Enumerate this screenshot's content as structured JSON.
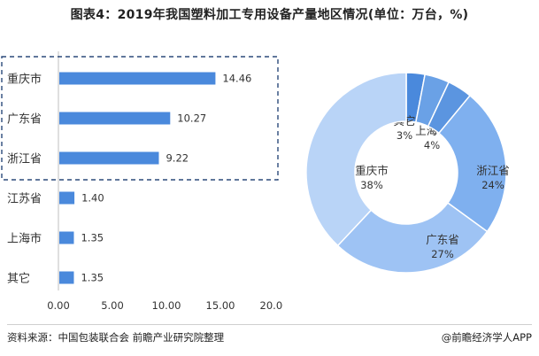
{
  "title": "图表4：2019年我国塑料加工专用设备产量地区情况(单位：万台，%)",
  "source": "资料来源：中国包装联合会 前瞻产业研究院整理",
  "credit": "@前瞻经济学人APP",
  "colors": {
    "bar": "#4a89dc",
    "highlight_box": "#2b4a7a",
    "slices": [
      "#4a89dc",
      "#6aa1e6",
      "#5b95e0",
      "#7fb0ef",
      "#9ec3f4",
      "#b9d4f7"
    ]
  },
  "chart_data": [
    {
      "type": "bar",
      "orientation": "horizontal",
      "categories": [
        "重庆市",
        "广东省",
        "浙江省",
        "江苏省",
        "上海市",
        "其它"
      ],
      "values": [
        14.46,
        10.27,
        9.22,
        1.4,
        1.35,
        1.35
      ],
      "value_labels": [
        "14.46",
        "10.27",
        "9.22",
        "1.40",
        "1.35",
        "1.35"
      ],
      "x_ticks": [
        "0.00",
        "5.00",
        "10.00",
        "15.00",
        "20.00"
      ],
      "xlim": [
        0,
        20
      ],
      "highlighted_categories": [
        "重庆市",
        "广东省",
        "浙江省"
      ]
    },
    {
      "type": "pie",
      "style": "donut",
      "slices": [
        {
          "label": "其它",
          "value": 3,
          "value_label": "3%"
        },
        {
          "label": "上海市",
          "value": 4,
          "value_label": "4%"
        },
        {
          "label": "江苏省",
          "value": 4,
          "value_label": "4%"
        },
        {
          "label": "浙江省",
          "value": 24,
          "value_label": "24%"
        },
        {
          "label": "广东省",
          "value": 27,
          "value_label": "27%"
        },
        {
          "label": "重庆市",
          "value": 38,
          "value_label": "38%"
        }
      ]
    }
  ]
}
